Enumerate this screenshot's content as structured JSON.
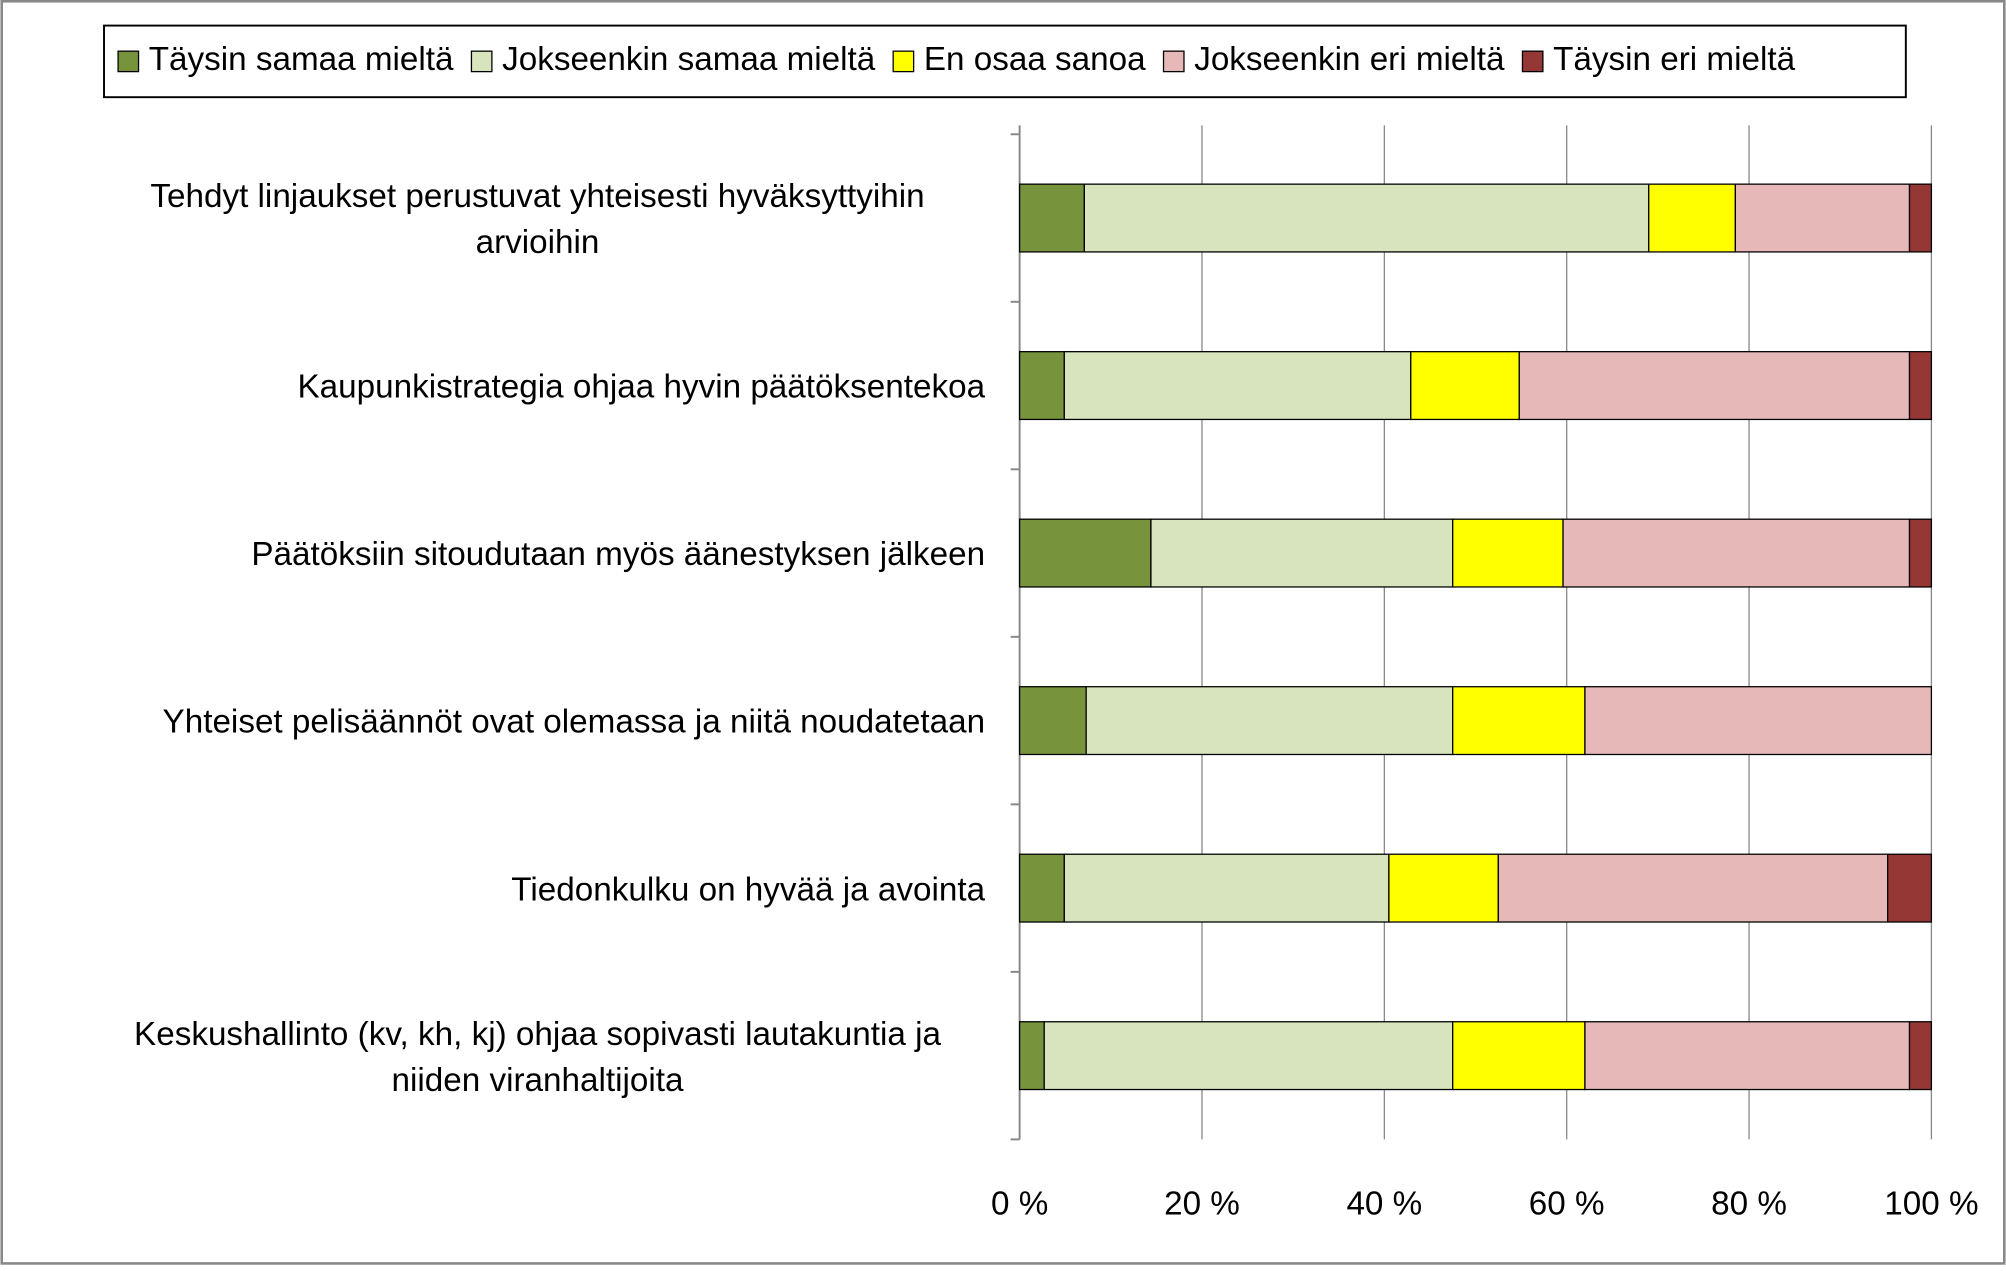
{
  "chart_data": {
    "type": "stacked-bar-horizontal",
    "categories": [
      "Tehdyt linjaukset perustuvat yhteisesti hyväksyttyihin arvioihin",
      "Kaupunkistrategia ohjaa hyvin päätöksentekoa",
      "Päätöksiin sitoudutaan myös äänestyksen jälkeen",
      "Yhteiset pelisäännöt ovat olemassa ja niitä noudatetaan",
      "Tiedonkulku on hyvää ja avointa",
      "Keskushallinto (kv, kh, kj) ohjaa sopivasti lautakuntia ja niiden viranhaltijoita"
    ],
    "series": [
      {
        "name": "Täysin samaa mieltä",
        "color": "#77933c",
        "values": [
          7.1,
          4.9,
          14.4,
          7.3,
          4.9,
          2.7
        ]
      },
      {
        "name": "Jokseenkin samaa mieltä",
        "color": "#d7e4bd",
        "values": [
          61.9,
          38.0,
          33.1,
          40.2,
          35.6,
          44.8
        ]
      },
      {
        "name": "En osaa sanoa",
        "color": "#ffff00",
        "values": [
          9.5,
          11.9,
          12.1,
          14.5,
          12.0,
          14.5
        ]
      },
      {
        "name": "Jokseenkin eri mieltä",
        "color": "#e6b9b8",
        "values": [
          19.1,
          42.8,
          38.0,
          38.0,
          42.7,
          35.6
        ]
      },
      {
        "name": "Täysin eri mieltä",
        "color": "#953735",
        "values": [
          2.4,
          2.4,
          2.4,
          0,
          4.8,
          2.4
        ]
      }
    ],
    "xlim": [
      0,
      100
    ],
    "xticks": [
      {
        "value": 0,
        "label": "0 %"
      },
      {
        "value": 20,
        "label": "20 %"
      },
      {
        "value": 40,
        "label": "40 %"
      },
      {
        "value": 60,
        "label": "60 %"
      },
      {
        "value": 80,
        "label": "80 %"
      },
      {
        "value": 100,
        "label": "100 %"
      }
    ],
    "grid": true,
    "legend": "top"
  }
}
